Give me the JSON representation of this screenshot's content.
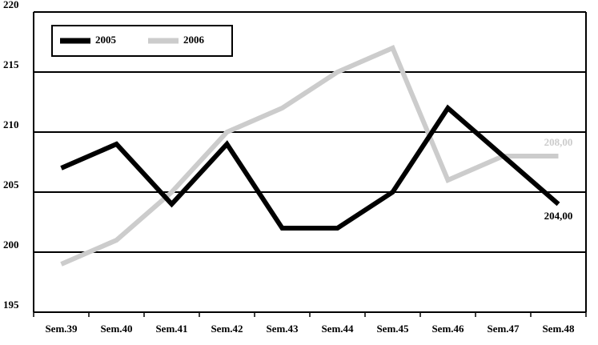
{
  "chart_data": {
    "type": "line",
    "categories": [
      "Sem.39",
      "Sem.40",
      "Sem.41",
      "Sem.42",
      "Sem.43",
      "Sem.44",
      "Sem.45",
      "Sem.46",
      "Sem.47",
      "Sem.48"
    ],
    "series": [
      {
        "name": "2005",
        "color": "#000000",
        "values": [
          207,
          209,
          204,
          209,
          202,
          202,
          205,
          212,
          208,
          204
        ],
        "value_labels": [
          null,
          null,
          null,
          null,
          null,
          null,
          null,
          null,
          null,
          "204,00"
        ]
      },
      {
        "name": "2006",
        "color": "#cccccc",
        "values": [
          199,
          201,
          205,
          210,
          212,
          215,
          217,
          206,
          208,
          208
        ],
        "value_labels": [
          null,
          null,
          null,
          null,
          null,
          null,
          null,
          null,
          null,
          "208,00"
        ]
      }
    ],
    "ylim": [
      195,
      220
    ],
    "yticks": [
      195,
      200,
      205,
      210,
      215,
      220
    ],
    "grid": true,
    "legend": "upper left"
  }
}
